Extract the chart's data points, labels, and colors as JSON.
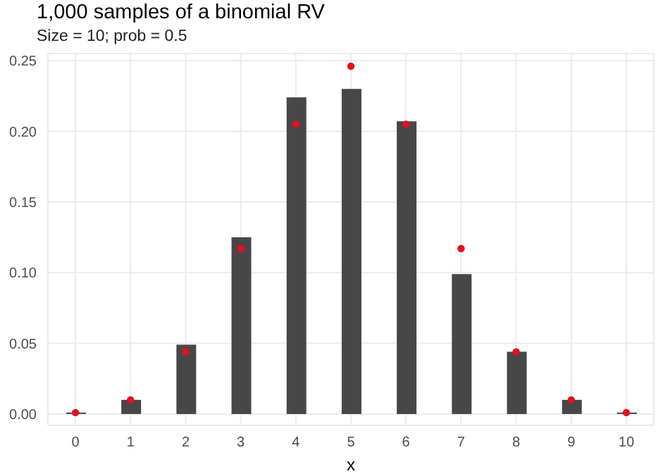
{
  "chart_data": {
    "type": "bar",
    "title": "1,000 samples of a binomial RV",
    "subtitle": "Size = 10; prob = 0.5",
    "xlabel": "x",
    "categories": [
      "0",
      "1",
      "2",
      "3",
      "4",
      "5",
      "6",
      "7",
      "8",
      "9",
      "10"
    ],
    "series": [
      {
        "color": "#474747",
        "values": [
          0.001,
          0.01,
          0.049,
          0.125,
          0.224,
          0.23,
          0.207,
          0.099,
          0.044,
          0.01,
          0.001
        ]
      },
      {
        "type": "scatter",
        "color": "#e3101c",
        "values": [
          0.001,
          0.01,
          0.044,
          0.117,
          0.205,
          0.246,
          0.205,
          0.117,
          0.044,
          0.01,
          0.001
        ]
      }
    ],
    "ylim": [
      -0.008,
      0.255
    ],
    "yticks": [
      {
        "value": 0,
        "label": "0.00"
      },
      {
        "value": 0.05,
        "label": "0.05"
      },
      {
        "value": 0.1,
        "label": "0.10"
      },
      {
        "value": 0.15,
        "label": "0.15"
      },
      {
        "value": 0.2,
        "label": "0.20"
      },
      {
        "value": 0.25,
        "label": "0.25"
      }
    ],
    "grid": true,
    "legend": false,
    "marker": "circle"
  }
}
